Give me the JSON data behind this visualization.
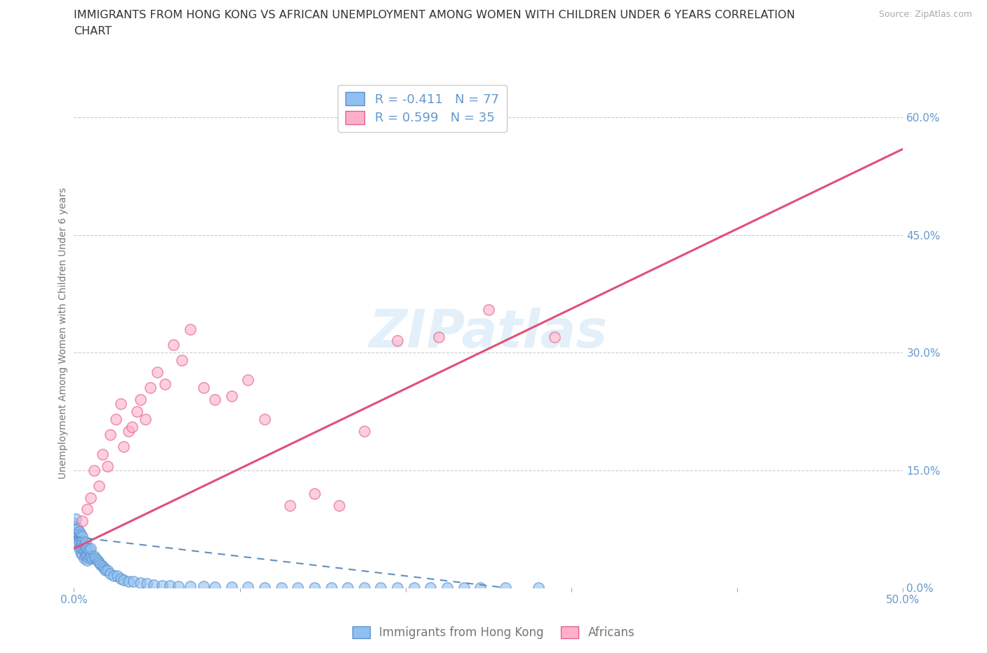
{
  "title_line1": "IMMIGRANTS FROM HONG KONG VS AFRICAN UNEMPLOYMENT AMONG WOMEN WITH CHILDREN UNDER 6 YEARS CORRELATION",
  "title_line2": "CHART",
  "source_text": "Source: ZipAtlas.com",
  "ylabel": "Unemployment Among Women with Children Under 6 years",
  "xlim": [
    0,
    0.5
  ],
  "ylim": [
    0,
    0.65
  ],
  "ytick_vals": [
    0.0,
    0.15,
    0.3,
    0.45,
    0.6
  ],
  "hk_R": -0.411,
  "hk_N": 77,
  "af_R": 0.599,
  "af_N": 35,
  "hk_color": "#90c0f0",
  "hk_edge_color": "#5a90d0",
  "af_color": "#ffb0c8",
  "af_edge_color": "#e06090",
  "hk_line_color": "#6090c0",
  "af_line_color": "#e0507a",
  "grid_color": "#cccccc",
  "title_color": "#333333",
  "axis_label_color": "#777777",
  "right_tick_color": "#6699cc",
  "watermark": "ZIPatlas",
  "hk_x": [
    0.0,
    0.0,
    0.001,
    0.001,
    0.001,
    0.002,
    0.002,
    0.002,
    0.003,
    0.003,
    0.003,
    0.003,
    0.004,
    0.004,
    0.004,
    0.004,
    0.005,
    0.005,
    0.005,
    0.005,
    0.006,
    0.006,
    0.006,
    0.007,
    0.007,
    0.007,
    0.008,
    0.008,
    0.008,
    0.009,
    0.009,
    0.01,
    0.01,
    0.011,
    0.012,
    0.013,
    0.014,
    0.015,
    0.016,
    0.017,
    0.018,
    0.019,
    0.02,
    0.022,
    0.024,
    0.026,
    0.028,
    0.03,
    0.033,
    0.036,
    0.04,
    0.044,
    0.048,
    0.053,
    0.058,
    0.063,
    0.07,
    0.078,
    0.085,
    0.095,
    0.105,
    0.115,
    0.125,
    0.135,
    0.145,
    0.155,
    0.165,
    0.175,
    0.185,
    0.195,
    0.205,
    0.215,
    0.225,
    0.235,
    0.245,
    0.26,
    0.28
  ],
  "hk_y": [
    0.075,
    0.082,
    0.068,
    0.078,
    0.088,
    0.058,
    0.068,
    0.075,
    0.05,
    0.058,
    0.065,
    0.072,
    0.045,
    0.052,
    0.06,
    0.068,
    0.042,
    0.05,
    0.058,
    0.065,
    0.038,
    0.048,
    0.055,
    0.04,
    0.05,
    0.058,
    0.035,
    0.042,
    0.05,
    0.038,
    0.048,
    0.04,
    0.05,
    0.038,
    0.04,
    0.038,
    0.035,
    0.032,
    0.03,
    0.028,
    0.025,
    0.022,
    0.022,
    0.018,
    0.015,
    0.015,
    0.012,
    0.01,
    0.008,
    0.008,
    0.006,
    0.005,
    0.004,
    0.003,
    0.003,
    0.002,
    0.002,
    0.002,
    0.001,
    0.001,
    0.001,
    0.0,
    0.0,
    0.0,
    0.0,
    0.0,
    0.0,
    0.0,
    0.0,
    0.0,
    0.0,
    0.0,
    0.0,
    0.0,
    0.0,
    0.0,
    0.0
  ],
  "af_x": [
    0.005,
    0.008,
    0.01,
    0.012,
    0.015,
    0.017,
    0.02,
    0.022,
    0.025,
    0.028,
    0.03,
    0.033,
    0.035,
    0.038,
    0.04,
    0.043,
    0.046,
    0.05,
    0.055,
    0.06,
    0.065,
    0.07,
    0.078,
    0.085,
    0.095,
    0.105,
    0.115,
    0.13,
    0.145,
    0.16,
    0.175,
    0.195,
    0.22,
    0.25,
    0.29
  ],
  "af_y": [
    0.085,
    0.1,
    0.115,
    0.15,
    0.13,
    0.17,
    0.155,
    0.195,
    0.215,
    0.235,
    0.18,
    0.2,
    0.205,
    0.225,
    0.24,
    0.215,
    0.255,
    0.275,
    0.26,
    0.31,
    0.29,
    0.33,
    0.255,
    0.24,
    0.245,
    0.265,
    0.215,
    0.105,
    0.12,
    0.105,
    0.2,
    0.315,
    0.32,
    0.355,
    0.32
  ],
  "af_line_x0": 0.0,
  "af_line_y0": 0.05,
  "af_line_x1": 0.5,
  "af_line_y1": 0.56,
  "hk_line_x0": 0.0,
  "hk_line_y0": 0.065,
  "hk_line_x1": 0.26,
  "hk_line_y1": 0.0
}
